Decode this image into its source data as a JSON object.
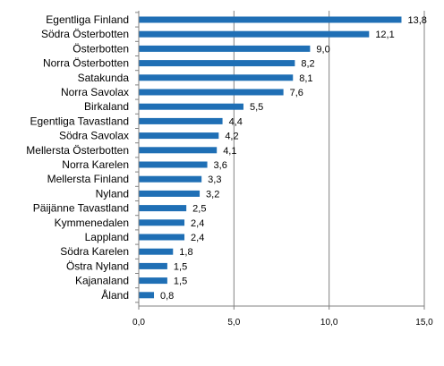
{
  "chart_data": {
    "type": "bar",
    "orientation": "horizontal",
    "title": "",
    "xlabel": "",
    "ylabel": "",
    "categories": [
      "Egentliga Finland",
      "Södra Österbotten",
      "Österbotten",
      "Norra Österbotten",
      "Satakunda",
      "Norra Savolax",
      "Birkaland",
      "Egentliga Tavastland",
      "Södra Savolax",
      "Mellersta Österbotten",
      "Norra Karelen",
      "Mellersta Finland",
      "Nyland",
      "Päijänne Tavastland",
      "Kymmenedalen",
      "Lappland",
      "Södra Karelen",
      "Östra Nyland",
      "Kajanaland",
      "Åland"
    ],
    "values": [
      13.8,
      12.1,
      9.0,
      8.2,
      8.1,
      7.6,
      5.5,
      4.4,
      4.2,
      4.1,
      3.6,
      3.3,
      3.2,
      2.5,
      2.4,
      2.4,
      1.8,
      1.5,
      1.5,
      0.8
    ],
    "value_labels": [
      "13,8",
      "12,1",
      "9,0",
      "8,2",
      "8,1",
      "7,6",
      "5,5",
      "4,4",
      "4,2",
      "4,1",
      "3,6",
      "3,3",
      "3,2",
      "2,5",
      "2,4",
      "2,4",
      "1,8",
      "1,5",
      "1,5",
      "0,8"
    ],
    "xlim": [
      0,
      15
    ],
    "xticks": [
      0,
      5,
      10,
      15
    ],
    "xtick_labels": [
      "0,0",
      "5,0",
      "10,0",
      "15,0"
    ],
    "grid": "vertical",
    "legend": "none",
    "bar_color": "#1f6fb5",
    "grid_color": "#808080",
    "axis_color": "#808080"
  }
}
